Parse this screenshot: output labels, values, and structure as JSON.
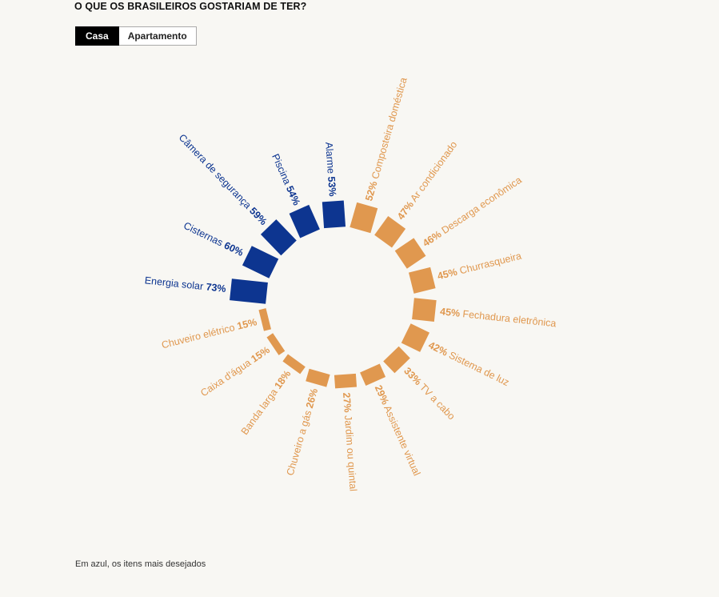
{
  "header": {
    "title": "O QUE OS BRASILEIROS GOSTARIAM DE TER?"
  },
  "tabs": [
    {
      "label": "Casa",
      "active": true
    },
    {
      "label": "Apartamento",
      "active": false
    }
  ],
  "colors": {
    "highlight": "#0d3590",
    "base": "#e0984f"
  },
  "chart_data": {
    "type": "bar",
    "layout": "radial",
    "categories": [
      "Energia solar",
      "Cisternas",
      "Câmera de segurança",
      "Piscina",
      "Alarme",
      "Composteira doméstica",
      "Ar condicionado",
      "Descarga econômica",
      "Churrasqueira",
      "Fechadura eletrônica",
      "Sistema de luz",
      "TV a cabo",
      "Assistente virtual",
      "Jardim ou quintal",
      "Chuveiro a gás",
      "Banda larga",
      "Caixa d'água",
      "Chuveiro elétrico"
    ],
    "values": [
      73,
      60,
      59,
      54,
      53,
      52,
      47,
      46,
      45,
      45,
      42,
      33,
      29,
      27,
      26,
      18,
      15,
      15
    ],
    "highlighted": [
      true,
      true,
      true,
      true,
      true,
      false,
      false,
      false,
      false,
      false,
      false,
      false,
      false,
      false,
      false,
      false,
      false,
      false
    ],
    "value_suffix": "%"
  },
  "footer": {
    "note": "Em azul, os itens mais desejados"
  }
}
